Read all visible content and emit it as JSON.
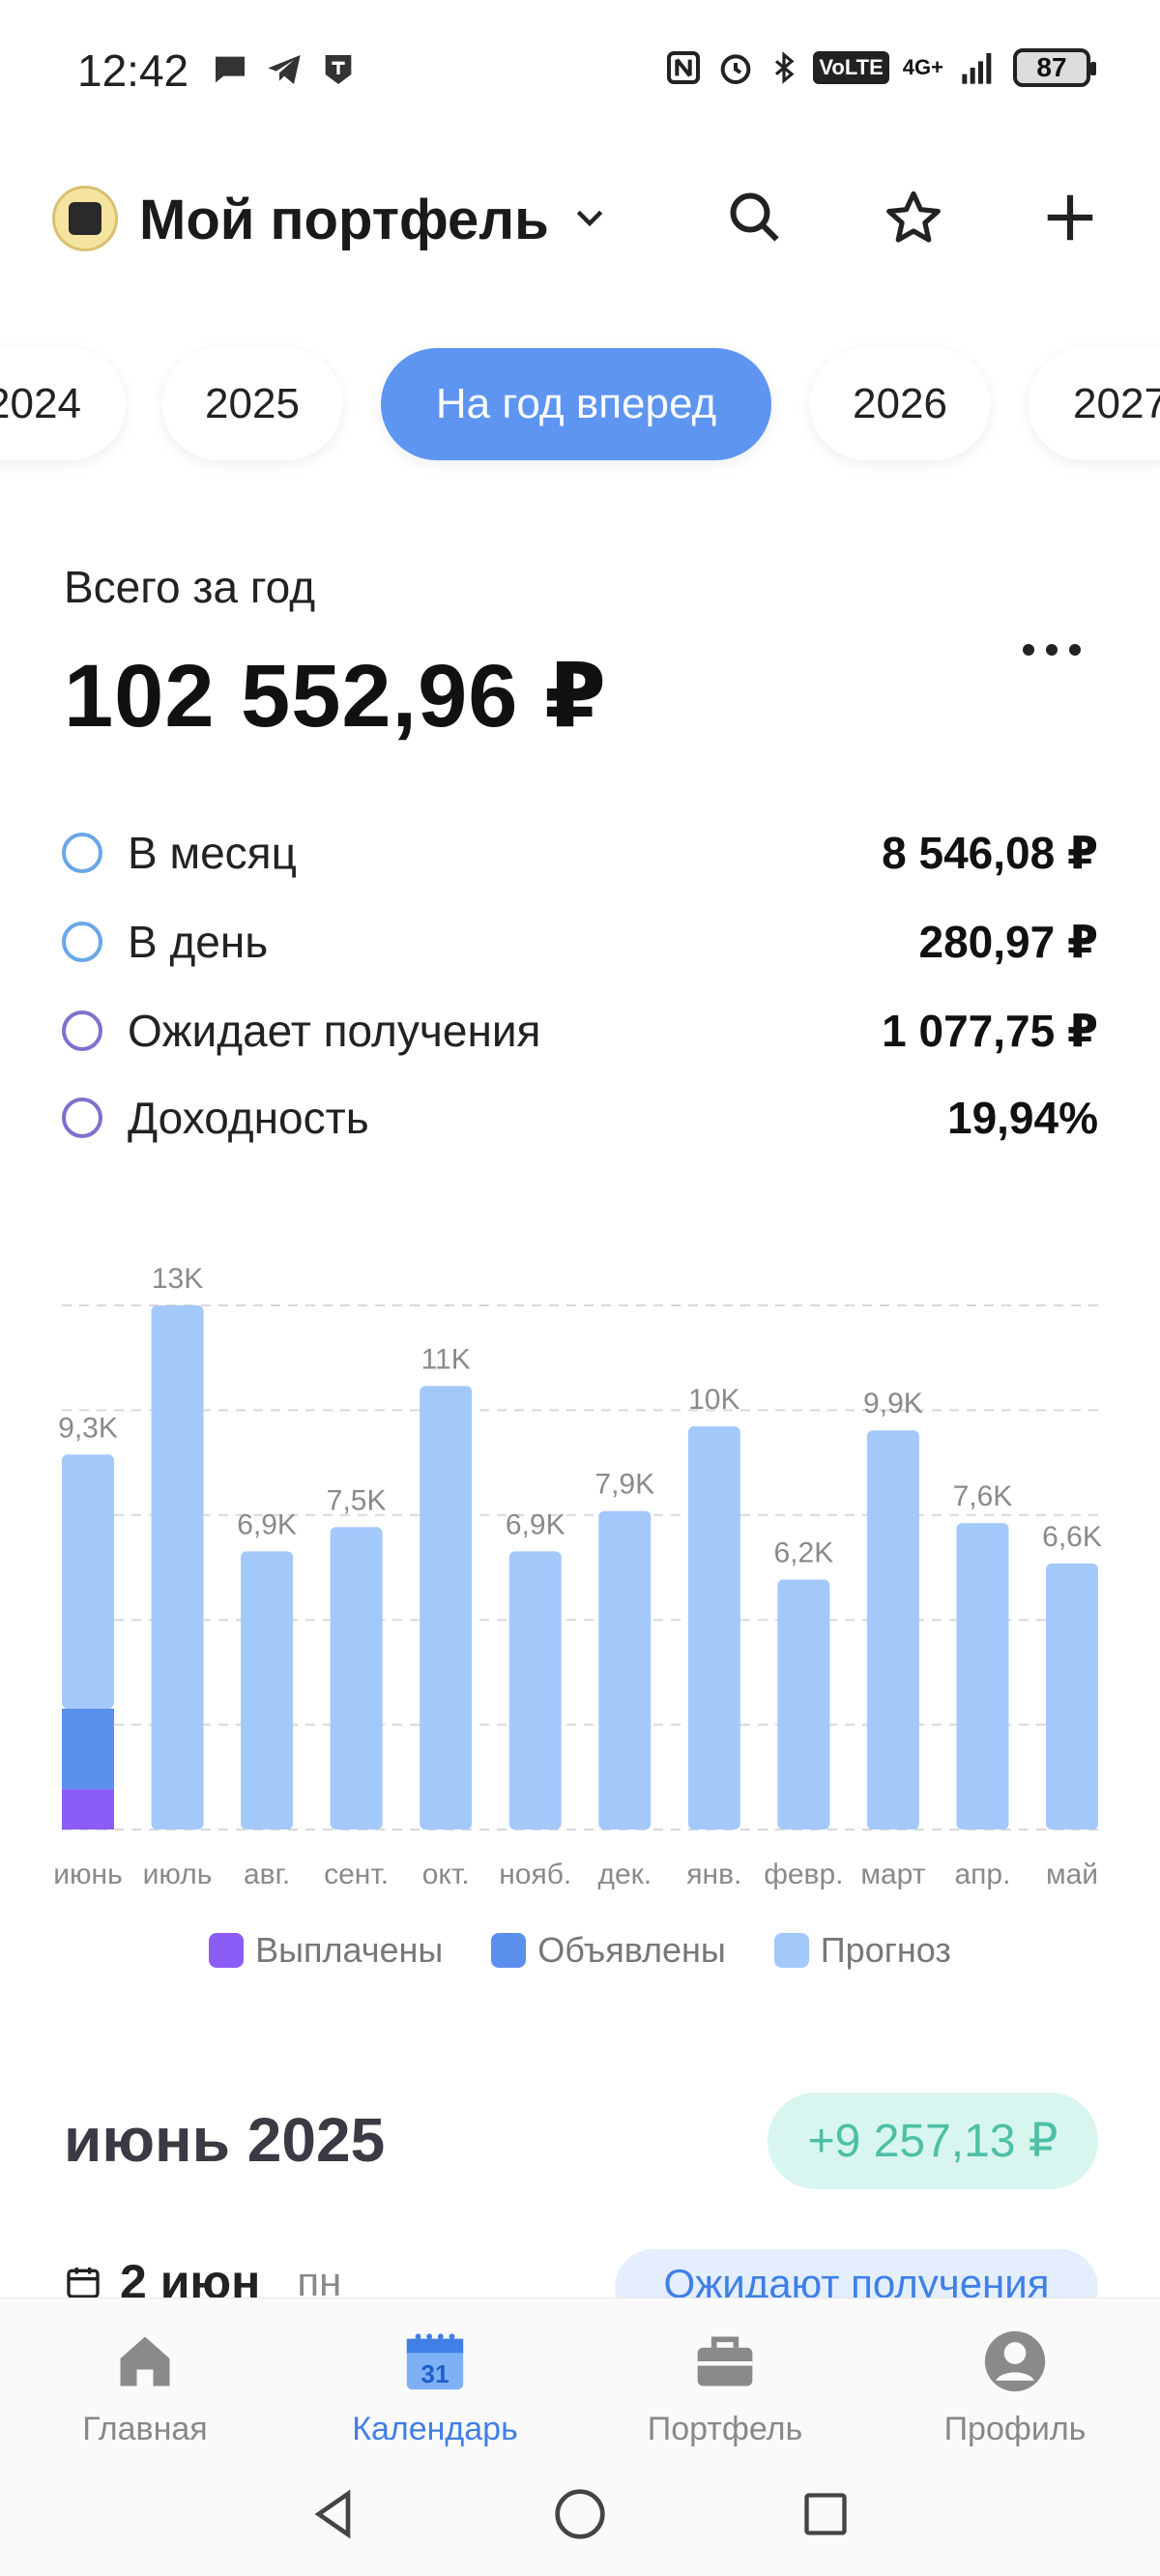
{
  "status_bar": {
    "time": "12:42",
    "network": "4G+",
    "volte": "VoLTE",
    "battery": "87"
  },
  "header": {
    "title": "Мой портфель"
  },
  "tabs": [
    {
      "label": "2024",
      "active": false
    },
    {
      "label": "2025",
      "active": false
    },
    {
      "label": "На год вперед",
      "active": true
    },
    {
      "label": "2026",
      "active": false
    },
    {
      "label": "2027",
      "active": false
    }
  ],
  "summary": {
    "label": "Всего за год",
    "total": "102 552,96 ₽",
    "stats": [
      {
        "label": "В месяц",
        "value": "8 546,08 ₽"
      },
      {
        "label": "В день",
        "value": "280,97 ₽"
      },
      {
        "label": "Ожидает получения",
        "value": "1 077,75 ₽"
      },
      {
        "label": "Доходность",
        "value": "19,94%"
      }
    ]
  },
  "chart_data": {
    "type": "bar",
    "stacked": true,
    "categories": [
      "июнь",
      "июль",
      "авг.",
      "сент.",
      "окт.",
      "нояб.",
      "дек.",
      "янв.",
      "февр.",
      "март",
      "апр.",
      "май"
    ],
    "data_labels": [
      "9,3K",
      "13K",
      "6,9K",
      "7,5K",
      "11K",
      "6,9K",
      "7,9K",
      "10K",
      "6,2K",
      "9,9K",
      "7,6K",
      "6,6K"
    ],
    "series": [
      {
        "name": "Выплачены",
        "color": "#8b5cf6",
        "values": [
          1000,
          0,
          0,
          0,
          0,
          0,
          0,
          0,
          0,
          0,
          0,
          0
        ]
      },
      {
        "name": "Объявлены",
        "color": "#5b8fee",
        "values": [
          2000,
          0,
          0,
          0,
          0,
          0,
          0,
          0,
          0,
          0,
          0,
          0
        ]
      },
      {
        "name": "Прогноз",
        "color": "#a3c8fa",
        "values": [
          6300,
          13000,
          6900,
          7500,
          11000,
          6900,
          7900,
          10000,
          6200,
          9900,
          7600,
          6600
        ]
      }
    ],
    "ylim": [
      0,
      13000
    ],
    "grid": true,
    "legend": "bottom"
  },
  "month": {
    "title": "июнь 2025",
    "amount": "+9 257,13 ₽",
    "date": "2 июн",
    "weekday": "пн",
    "status": "Ожидают получения"
  },
  "bottom_nav": [
    {
      "label": "Главная",
      "icon": "home-icon",
      "active": false
    },
    {
      "label": "Календарь",
      "icon": "calendar-icon",
      "active": true
    },
    {
      "label": "Портфель",
      "icon": "briefcase-icon",
      "active": false
    },
    {
      "label": "Профиль",
      "icon": "profile-icon",
      "active": false
    }
  ],
  "calendar_icon_number": "31"
}
